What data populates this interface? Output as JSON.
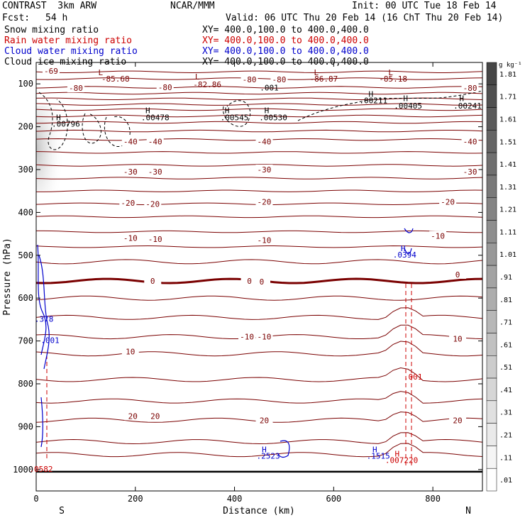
{
  "header": {
    "model": "CONTRAST  3km ARW",
    "org": "NCAR/MMM",
    "init": "Init: 00 UTC Tue 18 Feb 14",
    "fcst_label": "Fcst:",
    "fcst_value": "54 h",
    "valid": "Valid: 06 UTC Thu 20 Feb 14 (16 ChT Thu 20 Feb 14)"
  },
  "fields": [
    {
      "label": "Snow mixing ratio",
      "xy": "XY= 400.0,100.0 to 400.0,400.0",
      "color": "#000000"
    },
    {
      "label": "Rain water mixing ratio",
      "xy": "XY= 400.0,100.0 to 400.0,400.0",
      "color": "#cc0000"
    },
    {
      "label": "Cloud water mixing ratio",
      "xy": "XY= 400.0,100.0 to 400.0,400.0",
      "color": "#0000cc"
    },
    {
      "label": "Cloud ice mixing ratio",
      "xy": "XY= 400.0,100.0 to 400.0,400.0",
      "color": "#000000"
    }
  ],
  "colors": {
    "temperature": "#7a0000",
    "snow": "#000000",
    "rain": "#cc0000",
    "cloud_water": "#0000cc",
    "ground": "#000000"
  },
  "chart_data": {
    "type": "contour cross-section",
    "xlabel": "Distance (km)",
    "ylabel": "Pressure (hPa)",
    "xlim": [
      0,
      900
    ],
    "ylim": [
      1050,
      50
    ],
    "y_scale": "linear (inverted)",
    "x_ticks": [
      0,
      200,
      400,
      600,
      800
    ],
    "y_ticks": [
      100,
      200,
      300,
      400,
      500,
      600,
      700,
      800,
      900,
      1000
    ],
    "end_labels": {
      "left": "S",
      "right": "N"
    },
    "temperature_labels": [
      {
        "x": 30,
        "p": 70,
        "text": "-69"
      },
      {
        "x": 80,
        "p": 110,
        "text": "-80"
      },
      {
        "x": 260,
        "p": 108,
        "text": "-80"
      },
      {
        "x": 430,
        "p": 90,
        "text": "-80"
      },
      {
        "x": 490,
        "p": 90,
        "text": "-80"
      },
      {
        "x": 875,
        "p": 110,
        "text": "-80"
      },
      {
        "x": 190,
        "p": 235,
        "text": "-40"
      },
      {
        "x": 240,
        "p": 235,
        "text": "-40"
      },
      {
        "x": 460,
        "p": 235,
        "text": "-40"
      },
      {
        "x": 875,
        "p": 235,
        "text": "-40"
      },
      {
        "x": 190,
        "p": 305,
        "text": "-30"
      },
      {
        "x": 240,
        "p": 305,
        "text": "-30"
      },
      {
        "x": 460,
        "p": 300,
        "text": "-30"
      },
      {
        "x": 875,
        "p": 305,
        "text": "-30"
      },
      {
        "x": 185,
        "p": 378,
        "text": "-20"
      },
      {
        "x": 235,
        "p": 380,
        "text": "-20"
      },
      {
        "x": 460,
        "p": 375,
        "text": "-20"
      },
      {
        "x": 830,
        "p": 375,
        "text": "-20"
      },
      {
        "x": 190,
        "p": 460,
        "text": "-10"
      },
      {
        "x": 240,
        "p": 462,
        "text": "-10"
      },
      {
        "x": 460,
        "p": 465,
        "text": "-10"
      },
      {
        "x": 810,
        "p": 455,
        "text": "-10"
      },
      {
        "x": 235,
        "p": 560,
        "text": "0"
      },
      {
        "x": 430,
        "p": 560,
        "text": "0"
      },
      {
        "x": 455,
        "p": 562,
        "text": "0"
      },
      {
        "x": 850,
        "p": 545,
        "text": "0"
      },
      {
        "x": 425,
        "p": 690,
        "text": "-10"
      },
      {
        "x": 460,
        "p": 690,
        "text": "-10"
      },
      {
        "x": 190,
        "p": 725,
        "text": "10"
      },
      {
        "x": 850,
        "p": 695,
        "text": "10"
      },
      {
        "x": 195,
        "p": 875,
        "text": "20"
      },
      {
        "x": 240,
        "p": 875,
        "text": "20"
      },
      {
        "x": 460,
        "p": 885,
        "text": "20"
      },
      {
        "x": 850,
        "p": 885,
        "text": "20"
      }
    ],
    "extrema_labels": [
      {
        "x": 130,
        "p": 80,
        "text": "L",
        "color": "#7a0000"
      },
      {
        "x": 160,
        "p": 95,
        "text": "-85.68",
        "color": "#7a0000"
      },
      {
        "x": 325,
        "p": 90,
        "text": "L",
        "color": "#7a0000"
      },
      {
        "x": 345,
        "p": 108,
        "text": "-82.86",
        "color": "#7a0000"
      },
      {
        "x": 565,
        "p": 80,
        "text": "L",
        "color": "#7a0000"
      },
      {
        "x": 580,
        "p": 95,
        "text": "-86.87",
        "color": "#7a0000"
      },
      {
        "x": 715,
        "p": 80,
        "text": "L",
        "color": "#7a0000"
      },
      {
        "x": 720,
        "p": 95,
        "text": "-85.18",
        "color": "#7a0000"
      },
      {
        "x": 45,
        "p": 185,
        "text": "H",
        "color": "#000000"
      },
      {
        "x": 60,
        "p": 200,
        "text": ".00796",
        "color": "#000000"
      },
      {
        "x": 225,
        "p": 168,
        "text": "H",
        "color": "#000000"
      },
      {
        "x": 240,
        "p": 185,
        "text": ".00478",
        "color": "#000000"
      },
      {
        "x": 385,
        "p": 168,
        "text": "H",
        "color": "#000000"
      },
      {
        "x": 400,
        "p": 185,
        "text": ".00545",
        "color": "#000000"
      },
      {
        "x": 465,
        "p": 168,
        "text": "H",
        "color": "#000000"
      },
      {
        "x": 478,
        "p": 185,
        "text": ".00530",
        "color": "#000000"
      },
      {
        "x": 675,
        "p": 130,
        "text": "H",
        "color": "#000000"
      },
      {
        "x": 680,
        "p": 145,
        "text": ".00211",
        "color": "#000000"
      },
      {
        "x": 745,
        "p": 140,
        "text": "H",
        "color": "#000000"
      },
      {
        "x": 750,
        "p": 158,
        "text": ".00405",
        "color": "#000000"
      },
      {
        "x": 858,
        "p": 140,
        "text": "H",
        "color": "#000000"
      },
      {
        "x": 870,
        "p": 158,
        "text": ".00241",
        "color": "#000000"
      },
      {
        "x": 470,
        "p": 115,
        "text": ".001",
        "color": "#000000"
      },
      {
        "x": 740,
        "p": 490,
        "text": "H",
        "color": "#0000cc"
      },
      {
        "x": 743,
        "p": 505,
        "text": ".0394",
        "color": "#0000cc"
      },
      {
        "x": 760,
        "p": 790,
        "text": ".001",
        "color": "#cc0000"
      },
      {
        "x": 460,
        "p": 960,
        "text": "H",
        "color": "#0000cc"
      },
      {
        "x": 468,
        "p": 975,
        "text": ".2523",
        "color": "#0000cc"
      },
      {
        "x": 683,
        "p": 960,
        "text": "H",
        "color": "#0000cc"
      },
      {
        "x": 690,
        "p": 975,
        "text": ".1515",
        "color": "#0000cc"
      },
      {
        "x": 728,
        "p": 970,
        "text": "H",
        "color": "#cc0000"
      },
      {
        "x": 737,
        "p": 985,
        "text": ".007220",
        "color": "#cc0000"
      },
      {
        "x": 16,
        "p": 655,
        "text": ".378",
        "color": "#0000cc"
      },
      {
        "x": 28,
        "p": 705,
        "text": ".001",
        "color": "#0000cc"
      },
      {
        "x": 10,
        "p": 1005,
        "text": ".0582",
        "color": "#cc0000"
      }
    ],
    "colorbar": {
      "unit": "g kg⁻¹",
      "labels": [
        "1.81",
        "1.71",
        "1.61",
        "1.51",
        "1.41",
        "1.31",
        "1.21",
        "1.11",
        "1.01",
        ".91",
        ".81",
        ".71",
        ".61",
        ".51",
        ".41",
        ".31",
        ".21",
        ".11",
        ".01"
      ]
    }
  }
}
